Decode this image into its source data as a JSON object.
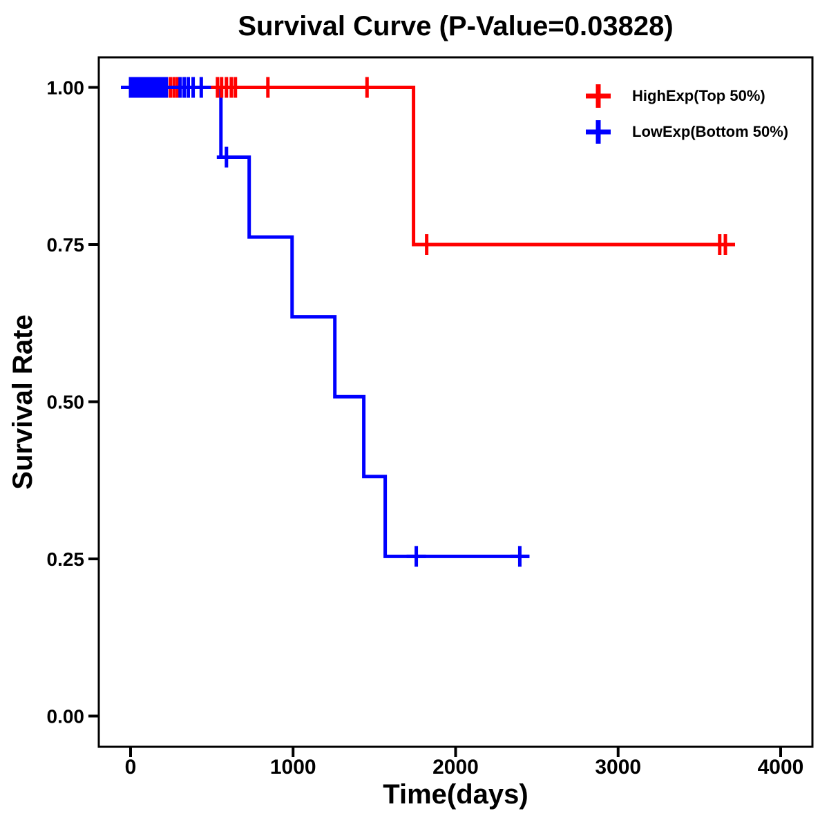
{
  "chart_data": {
    "type": "line",
    "subtype": "kaplan-meier-step",
    "title": "Survival Curve (P-Value=0.03828)",
    "p_value": "0.03828",
    "xlabel": "Time(days)",
    "ylabel": "Survival Rate",
    "xlim": [
      0,
      4000
    ],
    "ylim": [
      0.0,
      1.0
    ],
    "grid": false,
    "legend_position": "top-right-inside",
    "x_ticks": [
      {
        "label": "0",
        "value": 0
      },
      {
        "label": "1000",
        "value": 1000
      },
      {
        "label": "2000",
        "value": 2000
      },
      {
        "label": "3000",
        "value": 3000
      },
      {
        "label": "4000",
        "value": 4000
      }
    ],
    "y_ticks": [
      {
        "label": "0.00",
        "value": 0.0
      },
      {
        "label": "0.25",
        "value": 0.25
      },
      {
        "label": "0.50",
        "value": 0.5
      },
      {
        "label": "0.75",
        "value": 0.75
      },
      {
        "label": "1.00",
        "value": 1.0
      }
    ],
    "series": [
      {
        "name": "HighExp(Top 50%)",
        "color": "#FF0000",
        "steps": [
          [
            0,
            1.0
          ],
          [
            1741,
            1.0
          ],
          [
            1741,
            0.75
          ],
          [
            3715,
            0.75
          ]
        ],
        "censors": [
          [
            245,
            1.0
          ],
          [
            268,
            1.0
          ],
          [
            290,
            1.0
          ],
          [
            535,
            1.0
          ],
          [
            560,
            1.0
          ],
          [
            590,
            1.0
          ],
          [
            620,
            1.0
          ],
          [
            645,
            1.0
          ],
          [
            845,
            1.0
          ],
          [
            1455,
            1.0
          ],
          [
            1822,
            0.75
          ],
          [
            3625,
            0.75
          ],
          [
            3660,
            0.75
          ]
        ]
      },
      {
        "name": "LowExp(Bottom 50%)",
        "color": "#0000FF",
        "steps": [
          [
            0,
            1.0
          ],
          [
            556,
            1.0
          ],
          [
            556,
            0.889
          ],
          [
            730,
            0.889
          ],
          [
            730,
            0.762
          ],
          [
            994,
            0.762
          ],
          [
            994,
            0.635
          ],
          [
            1257,
            0.635
          ],
          [
            1257,
            0.508
          ],
          [
            1435,
            0.508
          ],
          [
            1435,
            0.381
          ],
          [
            1567,
            0.381
          ],
          [
            1567,
            0.254
          ],
          [
            2454,
            0.254
          ]
        ],
        "censors": [
          [
            0,
            1.0
          ],
          [
            10,
            1.0
          ],
          [
            25,
            1.0
          ],
          [
            40,
            1.0
          ],
          [
            55,
            1.0
          ],
          [
            70,
            1.0
          ],
          [
            85,
            1.0
          ],
          [
            100,
            1.0
          ],
          [
            115,
            1.0
          ],
          [
            130,
            1.0
          ],
          [
            145,
            1.0
          ],
          [
            160,
            1.0
          ],
          [
            175,
            1.0
          ],
          [
            190,
            1.0
          ],
          [
            205,
            1.0
          ],
          [
            220,
            1.0
          ],
          [
            305,
            1.0
          ],
          [
            330,
            1.0
          ],
          [
            355,
            1.0
          ],
          [
            385,
            1.0
          ],
          [
            435,
            1.0
          ],
          [
            590,
            0.889
          ],
          [
            1758,
            0.254
          ],
          [
            2395,
            0.254
          ]
        ]
      }
    ]
  }
}
